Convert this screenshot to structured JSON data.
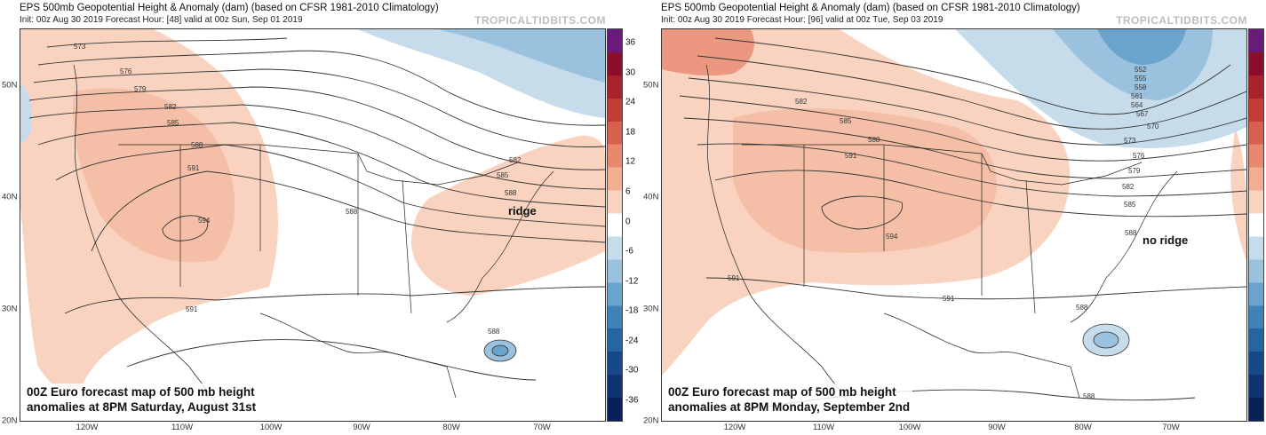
{
  "left_panel": {
    "title": "EPS 500mb Geopotential Height & Anomaly (dam) (based on CFSR 1981-2010 Climatology)",
    "subtitle": "Init: 00z Aug 30 2019   Forecast Hour: [48]   valid at 00z Sun, Sep 01 2019",
    "brand": "TROPICALTIDBITS.COM",
    "annotation": "ridge",
    "caption_line1": "00Z Euro forecast map of 500 mb height",
    "caption_line2": "anomalies at 8PM Saturday, August 31st",
    "contour_labels": [
      "573",
      "576",
      "579",
      "582",
      "585",
      "588",
      "591",
      "594",
      "582",
      "585",
      "588",
      "588",
      "591",
      "588"
    ]
  },
  "right_panel": {
    "title": "EPS 500mb Geopotential Height & Anomaly (dam) (based on CFSR 1981-2010 Climatology)",
    "subtitle": "Init: 00z Aug 30 2019   Forecast Hour: [96]   valid at 00z Tue, Sep 03 2019",
    "brand": "TROPICALTIDBITS.COM",
    "annotation": "no ridge",
    "caption_line1": "00Z Euro forecast map of 500 mb height",
    "caption_line2": "anomalies at 8PM Monday, September 2nd",
    "contour_labels": [
      "582",
      "585",
      "588",
      "591",
      "594",
      "552",
      "555",
      "558",
      "561",
      "564",
      "567",
      "570",
      "573",
      "576",
      "579",
      "582",
      "585",
      "588",
      "591",
      "591",
      "588",
      "588"
    ]
  },
  "latitude_labels": [
    "50N",
    "40N",
    "30N",
    "20N"
  ],
  "longitude_labels": [
    "120W",
    "110W",
    "100W",
    "90W",
    "80W",
    "70W"
  ],
  "colorbar": {
    "ticks": [
      "36",
      "30",
      "24",
      "18",
      "12",
      "6",
      "0",
      "-6",
      "-12",
      "-18",
      "-24",
      "-30",
      "-36"
    ],
    "colors": [
      "#6a1a7a",
      "#8a0f2c",
      "#a8222c",
      "#c43c38",
      "#d8604e",
      "#e8896f",
      "#f2ae92",
      "#f9d3c0",
      "#ffffff",
      "#c6dceb",
      "#9ac2de",
      "#6aa3cc",
      "#3f82b8",
      "#2565a2",
      "#17498a",
      "#0f3270",
      "#0a2058"
    ]
  }
}
